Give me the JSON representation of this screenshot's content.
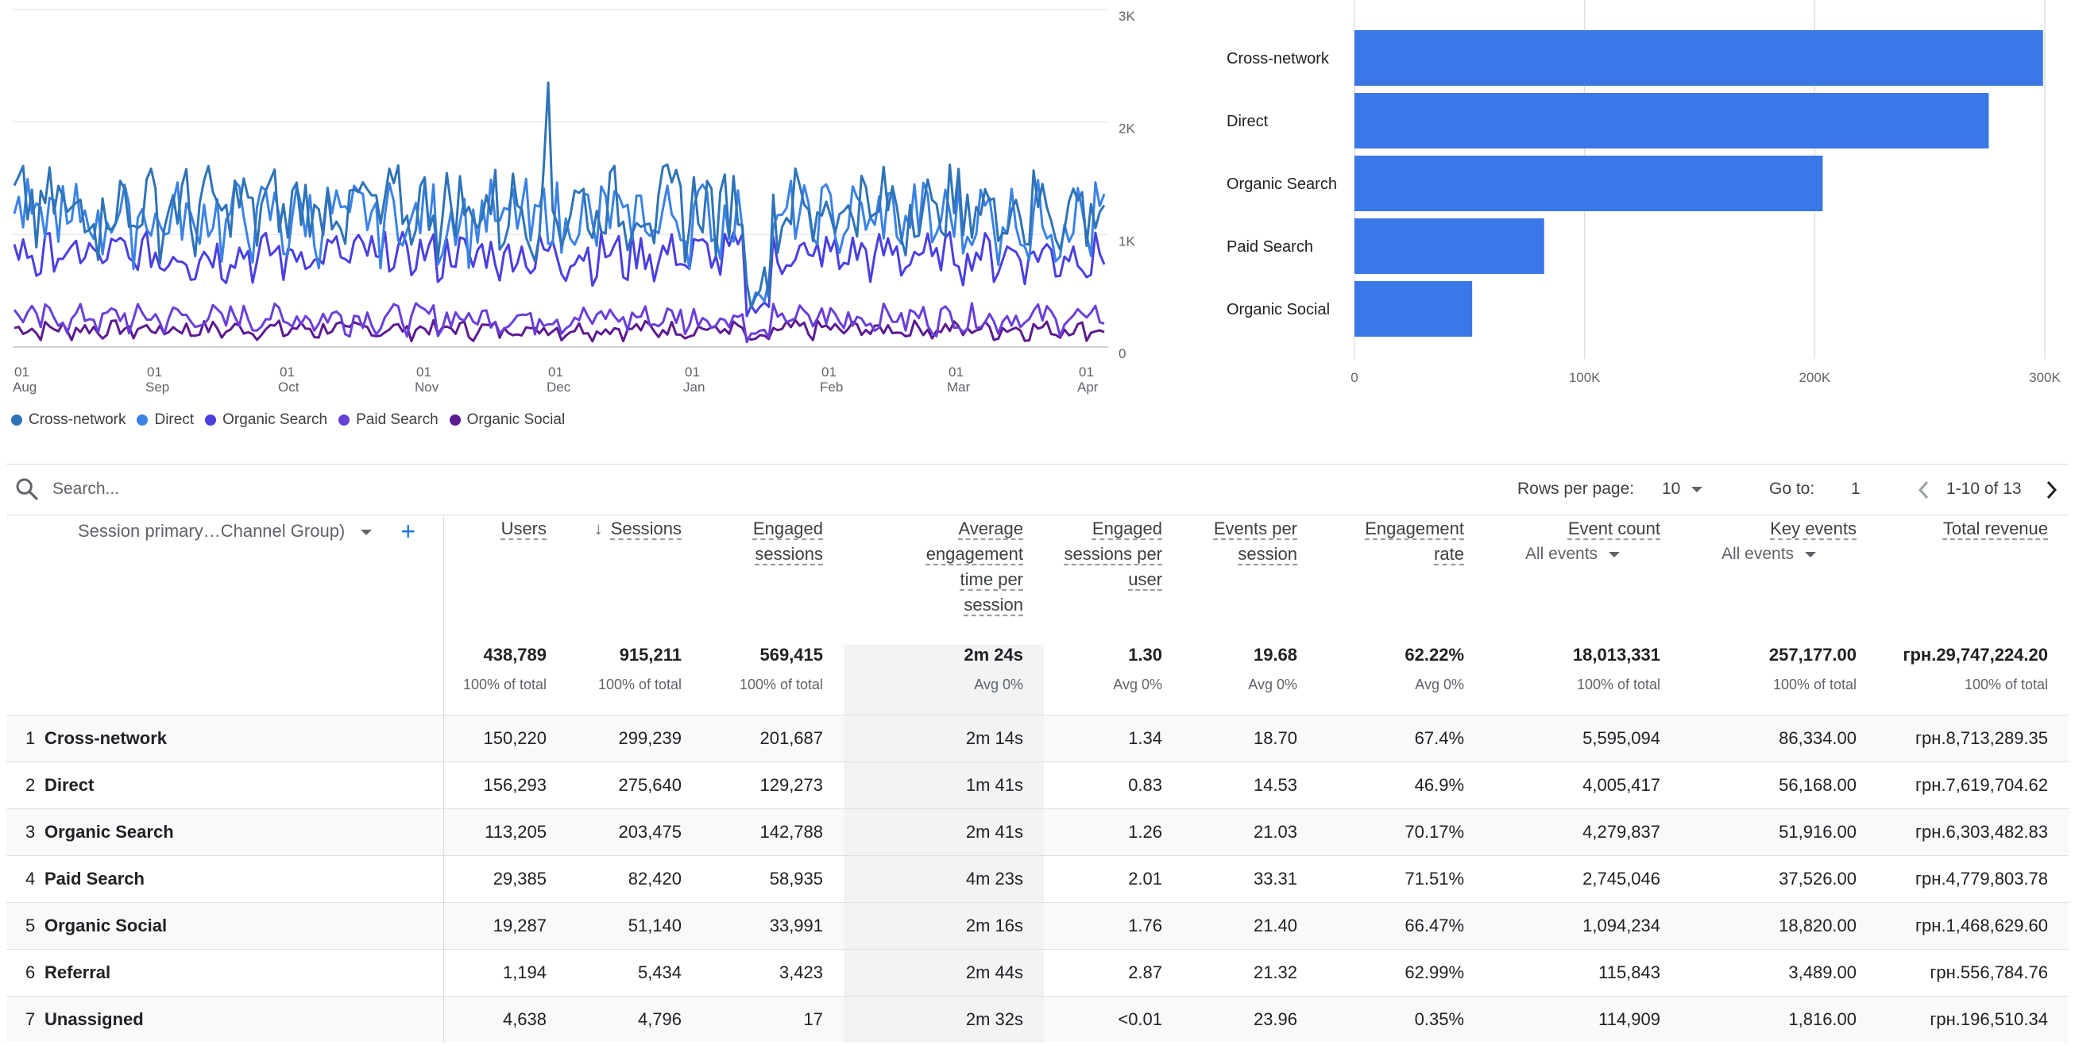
{
  "line_chart": {
    "y_ticks": [
      "3K",
      "2K",
      "1K",
      "0"
    ],
    "x_ticks": [
      {
        "day": "01",
        "month": "Aug"
      },
      {
        "day": "01",
        "month": "Sep"
      },
      {
        "day": "01",
        "month": "Oct"
      },
      {
        "day": "01",
        "month": "Nov"
      },
      {
        "day": "01",
        "month": "Dec"
      },
      {
        "day": "01",
        "month": "Jan"
      },
      {
        "day": "01",
        "month": "Feb"
      },
      {
        "day": "01",
        "month": "Mar"
      },
      {
        "day": "01",
        "month": "Apr"
      }
    ],
    "legend": [
      {
        "name": "Cross-network",
        "color": "#2f73b7"
      },
      {
        "name": "Direct",
        "color": "#3b82e6"
      },
      {
        "name": "Organic Search",
        "color": "#4a3fe0"
      },
      {
        "name": "Paid Search",
        "color": "#6a3fd8"
      },
      {
        "name": "Organic Social",
        "color": "#5c1a8f"
      }
    ]
  },
  "chart_data": [
    {
      "type": "line",
      "x_range": [
        "01 Aug",
        "05 Apr"
      ],
      "ylim": [
        0,
        3000
      ],
      "y_ticks": [
        0,
        1000,
        2000,
        3000
      ],
      "series": [
        {
          "name": "Cross-network",
          "color": "#2f73b7",
          "approx_level": 1300,
          "spike_peak": 2350,
          "spike_date": "21 Nov"
        },
        {
          "name": "Direct",
          "color": "#3b82e6",
          "approx_level": 1200
        },
        {
          "name": "Organic Search",
          "color": "#4a3fe0",
          "approx_level": 850
        },
        {
          "name": "Paid Search",
          "color": "#6a3fd8",
          "approx_level": 280
        },
        {
          "name": "Organic Social",
          "color": "#5c1a8f",
          "approx_level": 170
        }
      ],
      "grid": true
    },
    {
      "type": "bar",
      "orientation": "horizontal",
      "categories": [
        "Cross-network",
        "Direct",
        "Organic Search",
        "Paid Search",
        "Organic Social"
      ],
      "values": [
        299239,
        275640,
        203475,
        82420,
        51140
      ],
      "xlim": [
        0,
        300000
      ],
      "x_ticks": [
        "0",
        "100K",
        "200K",
        "300K"
      ],
      "color": "#3b78e7"
    }
  ],
  "toolbar": {
    "search_placeholder": "Search...",
    "rows_per_page_label": "Rows per page:",
    "rows_per_page_value": "10",
    "goto_label": "Go to:",
    "goto_value": "1",
    "range": "1-10 of 13"
  },
  "table": {
    "dimension_header": "Session primary…Channel Group)",
    "headers": [
      {
        "label": "Users"
      },
      {
        "label": "Sessions",
        "sorted": "desc"
      },
      {
        "label": "Engaged sessions"
      },
      {
        "label": "Average engagement time per session"
      },
      {
        "label": "Engaged sessions per user"
      },
      {
        "label": "Events per session"
      },
      {
        "label": "Engagement rate"
      },
      {
        "label": "Event count",
        "sub": "All events"
      },
      {
        "label": "Key events",
        "sub": "All events"
      },
      {
        "label": "Total revenue"
      }
    ],
    "totals": [
      {
        "value": "438,789",
        "sub": "100% of total"
      },
      {
        "value": "915,211",
        "sub": "100% of total"
      },
      {
        "value": "569,415",
        "sub": "100% of total"
      },
      {
        "value": "2m 24s",
        "sub": "Avg 0%"
      },
      {
        "value": "1.30",
        "sub": "Avg 0%"
      },
      {
        "value": "19.68",
        "sub": "Avg 0%"
      },
      {
        "value": "62.22%",
        "sub": "Avg 0%"
      },
      {
        "value": "18,013,331",
        "sub": "100% of total"
      },
      {
        "value": "257,177.00",
        "sub": "100% of total"
      },
      {
        "value": "грн.29,747,224.20",
        "sub": "100% of total"
      }
    ],
    "rows": [
      {
        "idx": "1",
        "channel": "Cross-network",
        "values": [
          "150,220",
          "299,239",
          "201,687",
          "2m 14s",
          "1.34",
          "18.70",
          "67.4%",
          "5,595,094",
          "86,334.00",
          "грн.8,713,289.35"
        ]
      },
      {
        "idx": "2",
        "channel": "Direct",
        "values": [
          "156,293",
          "275,640",
          "129,273",
          "1m 41s",
          "0.83",
          "14.53",
          "46.9%",
          "4,005,417",
          "56,168.00",
          "грн.7,619,704.62"
        ]
      },
      {
        "idx": "3",
        "channel": "Organic Search",
        "values": [
          "113,205",
          "203,475",
          "142,788",
          "2m 41s",
          "1.26",
          "21.03",
          "70.17%",
          "4,279,837",
          "51,916.00",
          "грн.6,303,482.83"
        ]
      },
      {
        "idx": "4",
        "channel": "Paid Search",
        "values": [
          "29,385",
          "82,420",
          "58,935",
          "4m 23s",
          "2.01",
          "33.31",
          "71.51%",
          "2,745,046",
          "37,526.00",
          "грн.4,779,803.78"
        ]
      },
      {
        "idx": "5",
        "channel": "Organic Social",
        "values": [
          "19,287",
          "51,140",
          "33,991",
          "2m 16s",
          "1.76",
          "21.40",
          "66.47%",
          "1,094,234",
          "18,820.00",
          "грн.1,468,629.60"
        ]
      },
      {
        "idx": "6",
        "channel": "Referral",
        "values": [
          "1,194",
          "5,434",
          "3,423",
          "2m 44s",
          "2.87",
          "21.32",
          "62.99%",
          "115,843",
          "3,489.00",
          "грн.556,784.76"
        ]
      },
      {
        "idx": "7",
        "channel": "Unassigned",
        "values": [
          "4,638",
          "4,796",
          "17",
          "2m 32s",
          "<0.01",
          "23.96",
          "0.35%",
          "114,909",
          "1,816.00",
          "грн.196,510.34"
        ]
      }
    ]
  }
}
